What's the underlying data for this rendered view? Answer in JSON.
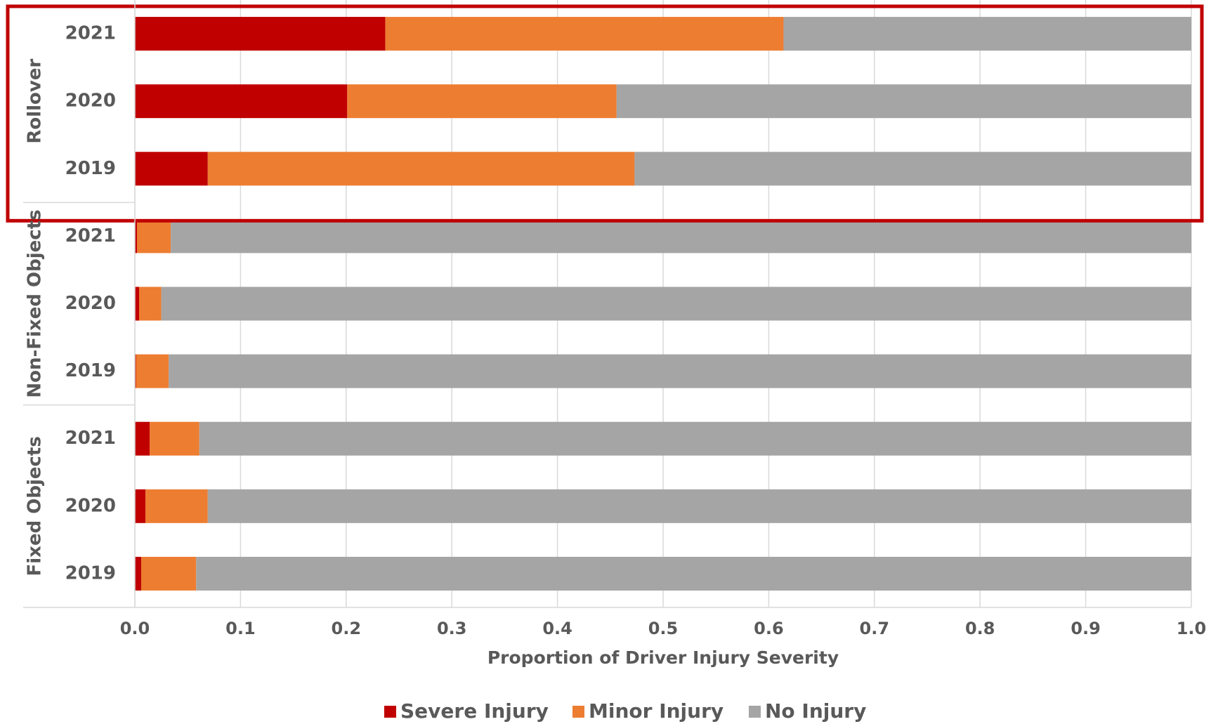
{
  "chart_data": {
    "type": "stacked_barh",
    "xlabel": "Proportion of Driver Injury Severity",
    "groups": [
      "Rollover",
      "Non-Fixed Objects",
      "Fixed Objects"
    ],
    "categories": [
      "2021",
      "2020",
      "2019",
      "2021",
      "2020",
      "2019",
      "2021",
      "2020",
      "2019"
    ],
    "series": [
      {
        "name": "Severe Injury",
        "color": "#c00000",
        "values": [
          0.237,
          0.201,
          0.069,
          0.002,
          0.004,
          0.001,
          0.014,
          0.01,
          0.006
        ]
      },
      {
        "name": "Minor Injury",
        "color": "#ed7d31",
        "values": [
          0.377,
          0.255,
          0.404,
          0.032,
          0.021,
          0.031,
          0.047,
          0.059,
          0.052
        ]
      },
      {
        "name": "No Injury",
        "color": "#a5a5a5",
        "values": [
          0.386,
          0.544,
          0.527,
          0.966,
          0.975,
          0.968,
          0.939,
          0.931,
          0.942
        ]
      }
    ],
    "xlim": [
      0,
      1
    ],
    "xticks": [
      {
        "value": 0,
        "label": "0.0"
      },
      0.1,
      0.2,
      0.3,
      0.4,
      0.5,
      0.6,
      0.7,
      0.8,
      0.9,
      {
        "value": 1,
        "label": "1.0"
      }
    ],
    "grid": true,
    "highlight_group": "Rollover",
    "legend": "bottom"
  }
}
